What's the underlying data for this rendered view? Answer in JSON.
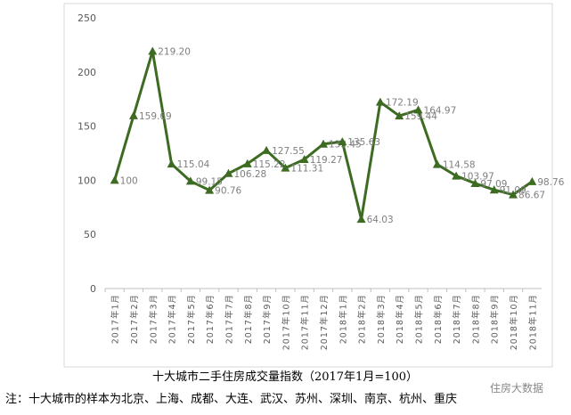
{
  "chart_data": {
    "type": "line",
    "title": "十大城市二手住房成交量指数（2017年1月=100）",
    "note": "注：十大城市的样本为北京、上海、成都、大连、武汉、苏州、深圳、南京、杭州、重庆",
    "watermark": "住房大数据",
    "categories": [
      "2017年1月",
      "2017年2月",
      "2017年3月",
      "2017年4月",
      "2017年5月",
      "2017年6月",
      "2017年7月",
      "2017年8月",
      "2017年9月",
      "2017年10月",
      "2017年11月",
      "2017年12月",
      "2018年1月",
      "2018年2月",
      "2018年3月",
      "2018年4月",
      "2018年5月",
      "2018年6月",
      "2018年7月",
      "2018年8月",
      "2018年9月",
      "2018年10月",
      "2018年11月"
    ],
    "series": [
      {
        "name": "十大城市二手住房成交量指数",
        "color": "#3d6b22",
        "values": [
          100,
          159.69,
          219.2,
          115.04,
          99.15,
          90.76,
          106.28,
          115.22,
          127.55,
          111.31,
          119.27,
          133.45,
          135.63,
          64.03,
          172.19,
          159.44,
          164.97,
          114.58,
          103.97,
          97.09,
          91.09,
          86.67,
          98.76
        ],
        "value_labels": [
          "100",
          "159.69",
          "219.20",
          "115.04",
          "99.15",
          "90.76",
          "106.28",
          "115.22",
          "127.55",
          "111.31",
          "119.27",
          "133.45",
          "135.63",
          "64.03",
          "172.19",
          "159.44",
          "164.97",
          "114.58",
          "103.97",
          "97.09",
          "91.09",
          "86.67",
          "98.76"
        ]
      }
    ],
    "ylim": [
      0,
      250
    ],
    "yticks": [
      0,
      50,
      100,
      150,
      200,
      250
    ],
    "grid": false
  }
}
